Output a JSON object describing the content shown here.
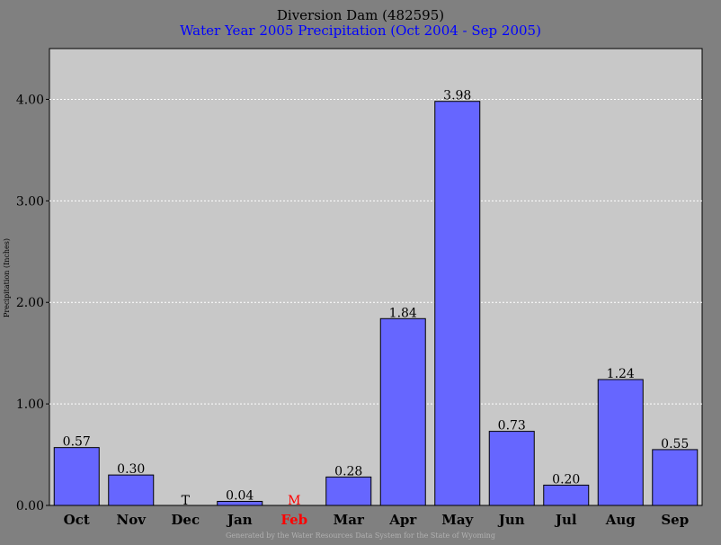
{
  "chart_data": {
    "type": "bar",
    "title": "Diversion Dam (482595)",
    "subtitle": "Water Year 2005 Precipitation (Oct 2004 - Sep 2005)",
    "xlabel": "",
    "ylabel": "Precipitation (Inches)",
    "ylim": [
      0,
      4.5
    ],
    "yticks": [
      0,
      1,
      2,
      3,
      4
    ],
    "ytick_labels": [
      "0.00",
      "1.00",
      "2.00",
      "3.00",
      "4.00"
    ],
    "grid": true,
    "categories": [
      "Oct",
      "Nov",
      "Dec",
      "Jan",
      "Feb",
      "Mar",
      "Apr",
      "May",
      "Jun",
      "Jul",
      "Aug",
      "Sep"
    ],
    "values": [
      0.57,
      0.3,
      0,
      0.04,
      null,
      0.28,
      1.84,
      3.98,
      0.73,
      0.2,
      1.24,
      0.55
    ],
    "data_labels": [
      "0.57",
      "0.30",
      "T",
      "0.04",
      "M",
      "0.28",
      "1.84",
      "3.98",
      "0.73",
      "0.20",
      "1.24",
      "0.55"
    ],
    "highlighted_categories": [
      "Feb"
    ],
    "footer": "Generated by the Water Resources Data System for the State of Wyoming"
  },
  "colors": {
    "background": "#808080",
    "plot_area": "#c8c8c8",
    "bar_fill": "#6666ff",
    "subtitle": "#0000ff",
    "missing": "#ff0000",
    "grid": "#ffffff"
  }
}
